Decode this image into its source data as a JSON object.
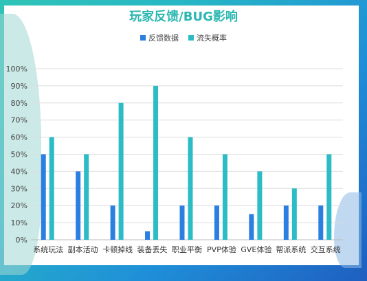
{
  "colors": {
    "series1": "#2b7fe0",
    "series2": "#2cbcc6"
  },
  "chart_data": {
    "type": "bar",
    "title": "玩家反馈/BUG影响",
    "categories": [
      "系统玩法",
      "副本活动",
      "卡顿掉线",
      "装备丢失",
      "职业平衡",
      "PVP体验",
      "GVE体验",
      "帮派系统",
      "交互系统"
    ],
    "series": [
      {
        "name": "反馈数据",
        "values": [
          50,
          40,
          20,
          5,
          20,
          20,
          15,
          20,
          20
        ]
      },
      {
        "name": "流失概率",
        "values": [
          60,
          50,
          80,
          90,
          60,
          50,
          40,
          30,
          50
        ]
      }
    ],
    "y_ticks": [
      "0%",
      "10%",
      "20%",
      "30%",
      "40%",
      "50%",
      "60%",
      "70%",
      "80%",
      "90%",
      "100%"
    ],
    "ylim": [
      0,
      100
    ],
    "grid": true,
    "legend": "top-center"
  }
}
